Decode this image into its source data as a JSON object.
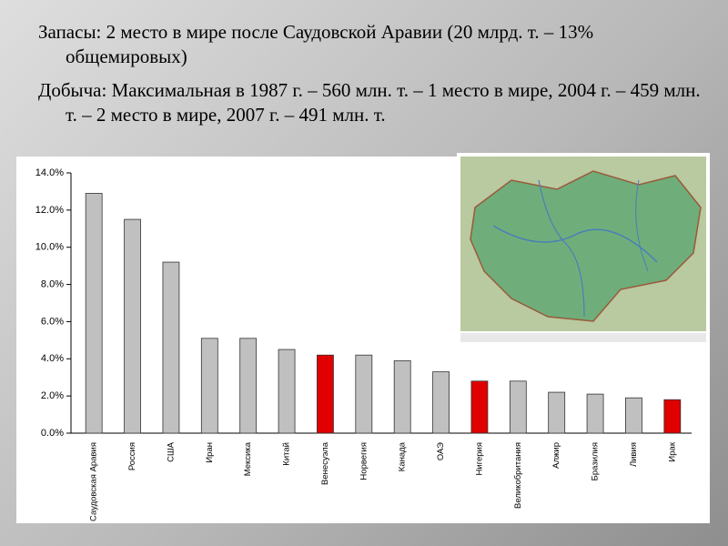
{
  "slide": {
    "paragraphs": [
      "Запасы: 2 место в мире после Саудовской Аравии (20 млрд. т. – 13% общемировых)",
      "Добыча: Максимальная в 1987 г. – 560 млн. т. – 1 место в мире, 2004 г. – 459 млн. т. – 2 место в мире, 2007 г. – 491 млн. т."
    ]
  },
  "chart_data": {
    "type": "bar",
    "categories": [
      "Саудовская Аравия",
      "Россия",
      "США",
      "Иран",
      "Мексика",
      "Китай",
      "Венесуэла",
      "Норвегия",
      "Канада",
      "ОАЭ",
      "Нигерия",
      "Великобритания",
      "Алжир",
      "Бразилия",
      "Ливия",
      "Ирак"
    ],
    "values": [
      12.9,
      11.5,
      9.2,
      5.1,
      5.1,
      4.5,
      4.2,
      4.2,
      3.9,
      3.3,
      2.8,
      2.8,
      2.2,
      2.1,
      1.9,
      1.8
    ],
    "colors": [
      "#c0c0c0",
      "#c0c0c0",
      "#c0c0c0",
      "#c0c0c0",
      "#c0c0c0",
      "#c0c0c0",
      "#e00000",
      "#c0c0c0",
      "#c0c0c0",
      "#c0c0c0",
      "#e00000",
      "#c0c0c0",
      "#c0c0c0",
      "#c0c0c0",
      "#c0c0c0",
      "#e00000"
    ],
    "ylim": [
      0,
      14
    ],
    "yticks": [
      {
        "value": 0,
        "label": "0.0%"
      },
      {
        "value": 2,
        "label": "2.0%"
      },
      {
        "value": 4,
        "label": "4.0%"
      },
      {
        "value": 6,
        "label": "6.0%"
      },
      {
        "value": 8,
        "label": "8.0%"
      },
      {
        "value": 10,
        "label": "10.0%"
      },
      {
        "value": 12,
        "label": "12.0%"
      },
      {
        "value": 14,
        "label": "14.0%"
      }
    ],
    "grid": false
  }
}
